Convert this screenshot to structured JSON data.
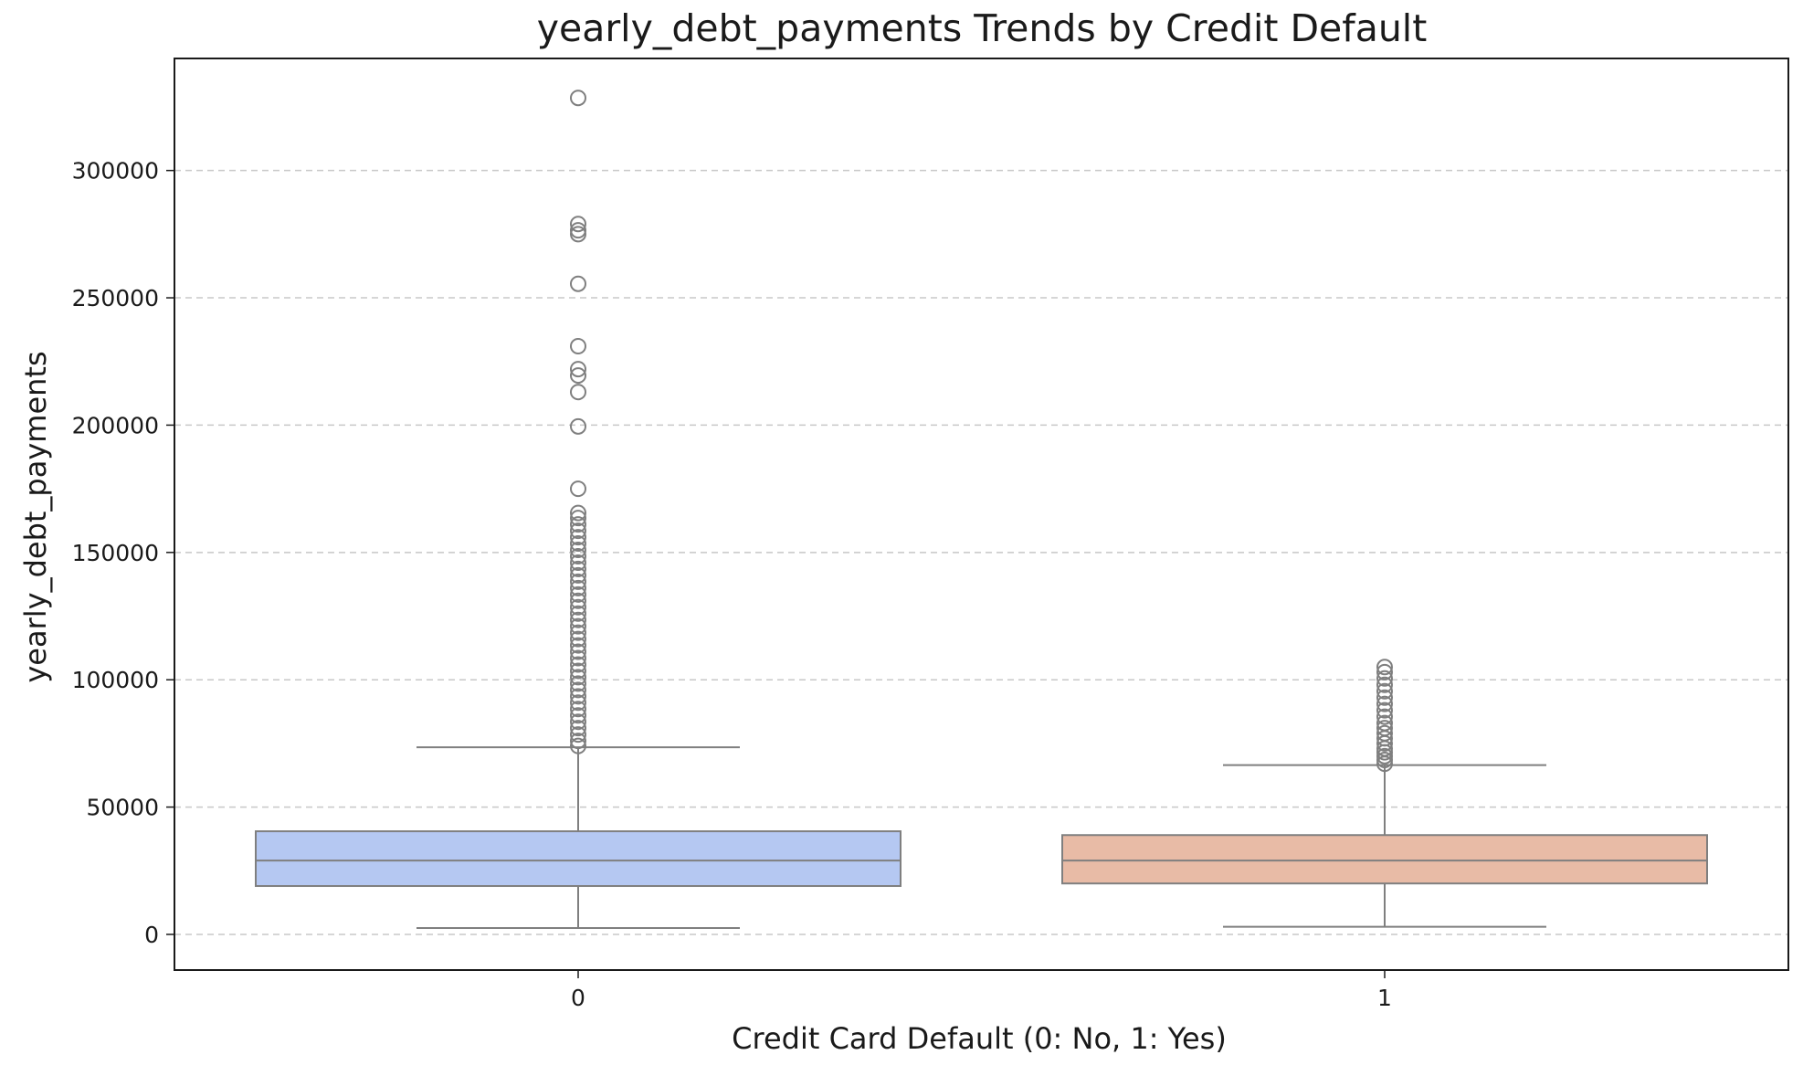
{
  "chart_data": {
    "type": "box",
    "title": "yearly_debt_payments Trends by Credit Default",
    "xlabel": "Credit Card Default (0: No, 1: Yes)",
    "ylabel": "yearly_debt_payments",
    "ylim": [
      -14000,
      344000
    ],
    "yticks": [
      0,
      50000,
      100000,
      150000,
      200000,
      250000,
      300000
    ],
    "ytick_labels": [
      "0",
      "50000",
      "100000",
      "150000",
      "200000",
      "250000",
      "300000"
    ],
    "grid": "y-dashed",
    "categories": [
      "0",
      "1"
    ],
    "boxes": [
      {
        "category": "0",
        "whisker_low": 2500,
        "q1": 19000,
        "median": 29000,
        "q3": 40500,
        "whisker_high": 73500,
        "color": "#b5c8f2",
        "outliers": [
          328500,
          279000,
          276500,
          275000,
          255500,
          231000,
          222000,
          219500,
          213000,
          199500,
          175000,
          165500,
          163500,
          161000,
          158500,
          156000,
          153500,
          151000,
          148500,
          146000,
          143500,
          141000,
          138500,
          136000,
          133500,
          131000,
          128500,
          126000,
          123500,
          121000,
          118500,
          116000,
          113500,
          111000,
          108500,
          106000,
          103500,
          101000,
          98500,
          96000,
          93500,
          91000,
          88500,
          86000,
          83500,
          81000,
          78500,
          76000,
          74000
        ]
      },
      {
        "category": "1",
        "whisker_low": 3000,
        "q1": 20000,
        "median": 29000,
        "q3": 39000,
        "whisker_high": 66500,
        "color": "#e8bba6",
        "outliers": [
          105000,
          103000,
          100500,
          98000,
          95500,
          93000,
          90500,
          88000,
          85500,
          83000,
          81000,
          79000,
          77000,
          75000,
          73000,
          71500,
          70000,
          68500,
          67000
        ]
      }
    ]
  }
}
